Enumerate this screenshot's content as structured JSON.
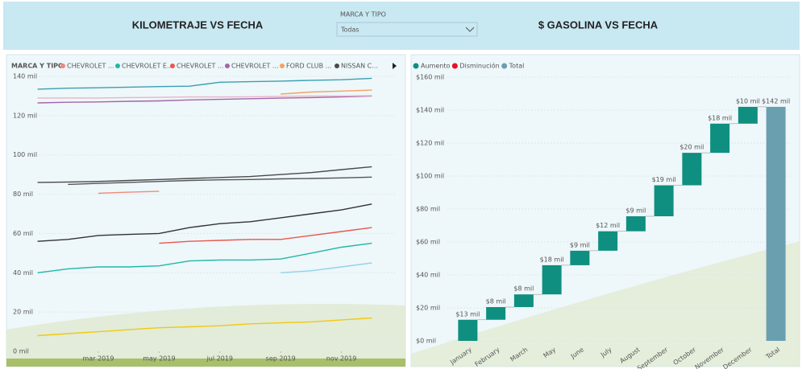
{
  "slicer": {
    "label": "MARCA Y TIPO",
    "value": "Todas"
  },
  "chart_data": [
    {
      "type": "line",
      "title": "KILOMETRAJE VS FECHA",
      "legend_title": "MARCA Y TIPO",
      "x": [
        "2019-01",
        "2019-02",
        "2019-03",
        "2019-04",
        "2019-05",
        "2019-06",
        "2019-07",
        "2019-08",
        "2019-09",
        "2019-10",
        "2019-11",
        "2019-12"
      ],
      "xticks": [
        {
          "value": "2019-03",
          "label": "mar 2019"
        },
        {
          "value": "2019-05",
          "label": "may 2019"
        },
        {
          "value": "2019-07",
          "label": "jul 2019"
        },
        {
          "value": "2019-09",
          "label": "sep 2019"
        },
        {
          "value": "2019-11",
          "label": "nov 2019"
        }
      ],
      "ylim": [
        0,
        140
      ],
      "yticks": [
        {
          "value": 0,
          "label": "0 mil"
        },
        {
          "value": 20,
          "label": "20 mil"
        },
        {
          "value": 40,
          "label": "40 mil"
        },
        {
          "value": 60,
          "label": "60 mil"
        },
        {
          "value": 80,
          "label": "80 mil"
        },
        {
          "value": 100,
          "label": "100 mil"
        },
        {
          "value": 120,
          "label": "120 mil"
        },
        {
          "value": 140,
          "label": "140 mil"
        }
      ],
      "series": [
        {
          "name": "CHEVROLET ...",
          "color": "#f0897a",
          "values": [
            null,
            null,
            80.5,
            81,
            81.5,
            null,
            null,
            null,
            null,
            null,
            null,
            null
          ]
        },
        {
          "name": "CHEVROLET E...",
          "color": "#1fb8a6",
          "values": [
            40,
            42,
            43,
            43,
            43.5,
            46,
            46.5,
            46.5,
            47,
            50,
            53,
            55
          ]
        },
        {
          "name": "CHEVROLET ...",
          "color": "#e8574f",
          "values": [
            null,
            null,
            null,
            null,
            55,
            56,
            56.5,
            57,
            57,
            59,
            61,
            63
          ]
        },
        {
          "name": "CHEVROLET ...",
          "color": "#a466a8",
          "values": [
            126.5,
            126.8,
            127,
            127.3,
            127.5,
            128,
            128.3,
            128.6,
            128.9,
            129.2,
            129.5,
            130
          ]
        },
        {
          "name": "FORD CLUB ...",
          "color": "#f4a261",
          "values": [
            null,
            null,
            null,
            null,
            null,
            null,
            null,
            null,
            131,
            132,
            132.5,
            133
          ]
        },
        {
          "name": "NISSAN C...",
          "color": "#4a4a4a",
          "values": [
            86,
            86.2,
            86.5,
            87,
            87.5,
            88,
            88.5,
            89,
            90,
            91,
            92.5,
            94
          ]
        },
        {
          "color": "#3aa0b0",
          "values": [
            133.5,
            134,
            134.2,
            134.5,
            134.8,
            135,
            137,
            137.3,
            137.6,
            138,
            138.3,
            139
          ]
        },
        {
          "color": "#e8b4c8",
          "values": [
            129,
            129,
            129,
            129.2,
            129.3,
            129.5,
            129.5,
            129.6,
            129.8,
            130,
            130,
            130.2
          ]
        },
        {
          "color": "#555555",
          "values": [
            null,
            85,
            85.5,
            86,
            86.5,
            87,
            87.3,
            87.5,
            87.8,
            88,
            88.3,
            88.7
          ]
        },
        {
          "color": "#333333",
          "values": [
            56,
            57,
            59,
            59.5,
            60,
            63,
            65,
            66,
            68,
            70,
            72,
            75
          ]
        },
        {
          "color": "#8fd3e8",
          "values": [
            null,
            null,
            null,
            null,
            null,
            null,
            null,
            null,
            40,
            41,
            43,
            45
          ]
        },
        {
          "color": "#f2c811",
          "values": [
            8,
            9,
            10,
            11,
            12,
            12.5,
            13,
            14,
            14.5,
            15,
            16,
            17
          ]
        }
      ]
    },
    {
      "type": "waterfall",
      "title": "$ GASOLINA VS FECHA",
      "legend": [
        {
          "name": "Aumento",
          "color": "#0f8f7f"
        },
        {
          "name": "Disminución",
          "color": "#e81123"
        },
        {
          "name": "Total",
          "color": "#6a9fb0"
        }
      ],
      "categories": [
        "January",
        "February",
        "March",
        "May",
        "June",
        "July",
        "August",
        "September",
        "October",
        "November",
        "December",
        "Total"
      ],
      "values": [
        12800,
        7700,
        7700,
        17700,
        8800,
        11800,
        9100,
        18800,
        19700,
        17700,
        10200,
        142000
      ],
      "value_labels": [
        "$13 mil",
        "$8 mil",
        "$8 mil",
        "$18 mil",
        "$9 mil",
        "$12 mil",
        "$9 mil",
        "$19 mil",
        "$20 mil",
        "$18 mil",
        "$10 mil",
        "$142 mil"
      ],
      "ylim": [
        0,
        160000
      ],
      "yticks": [
        {
          "value": 0,
          "label": "$0 mil"
        },
        {
          "value": 20000,
          "label": "$20 mil"
        },
        {
          "value": 40000,
          "label": "$40 mil"
        },
        {
          "value": 60000,
          "label": "$60 mil"
        },
        {
          "value": 80000,
          "label": "$80 mil"
        },
        {
          "value": 100000,
          "label": "$100 mil"
        },
        {
          "value": 120000,
          "label": "$120 mil"
        },
        {
          "value": 140000,
          "label": "$140 mil"
        },
        {
          "value": 160000,
          "label": "$160 mil"
        }
      ]
    }
  ]
}
